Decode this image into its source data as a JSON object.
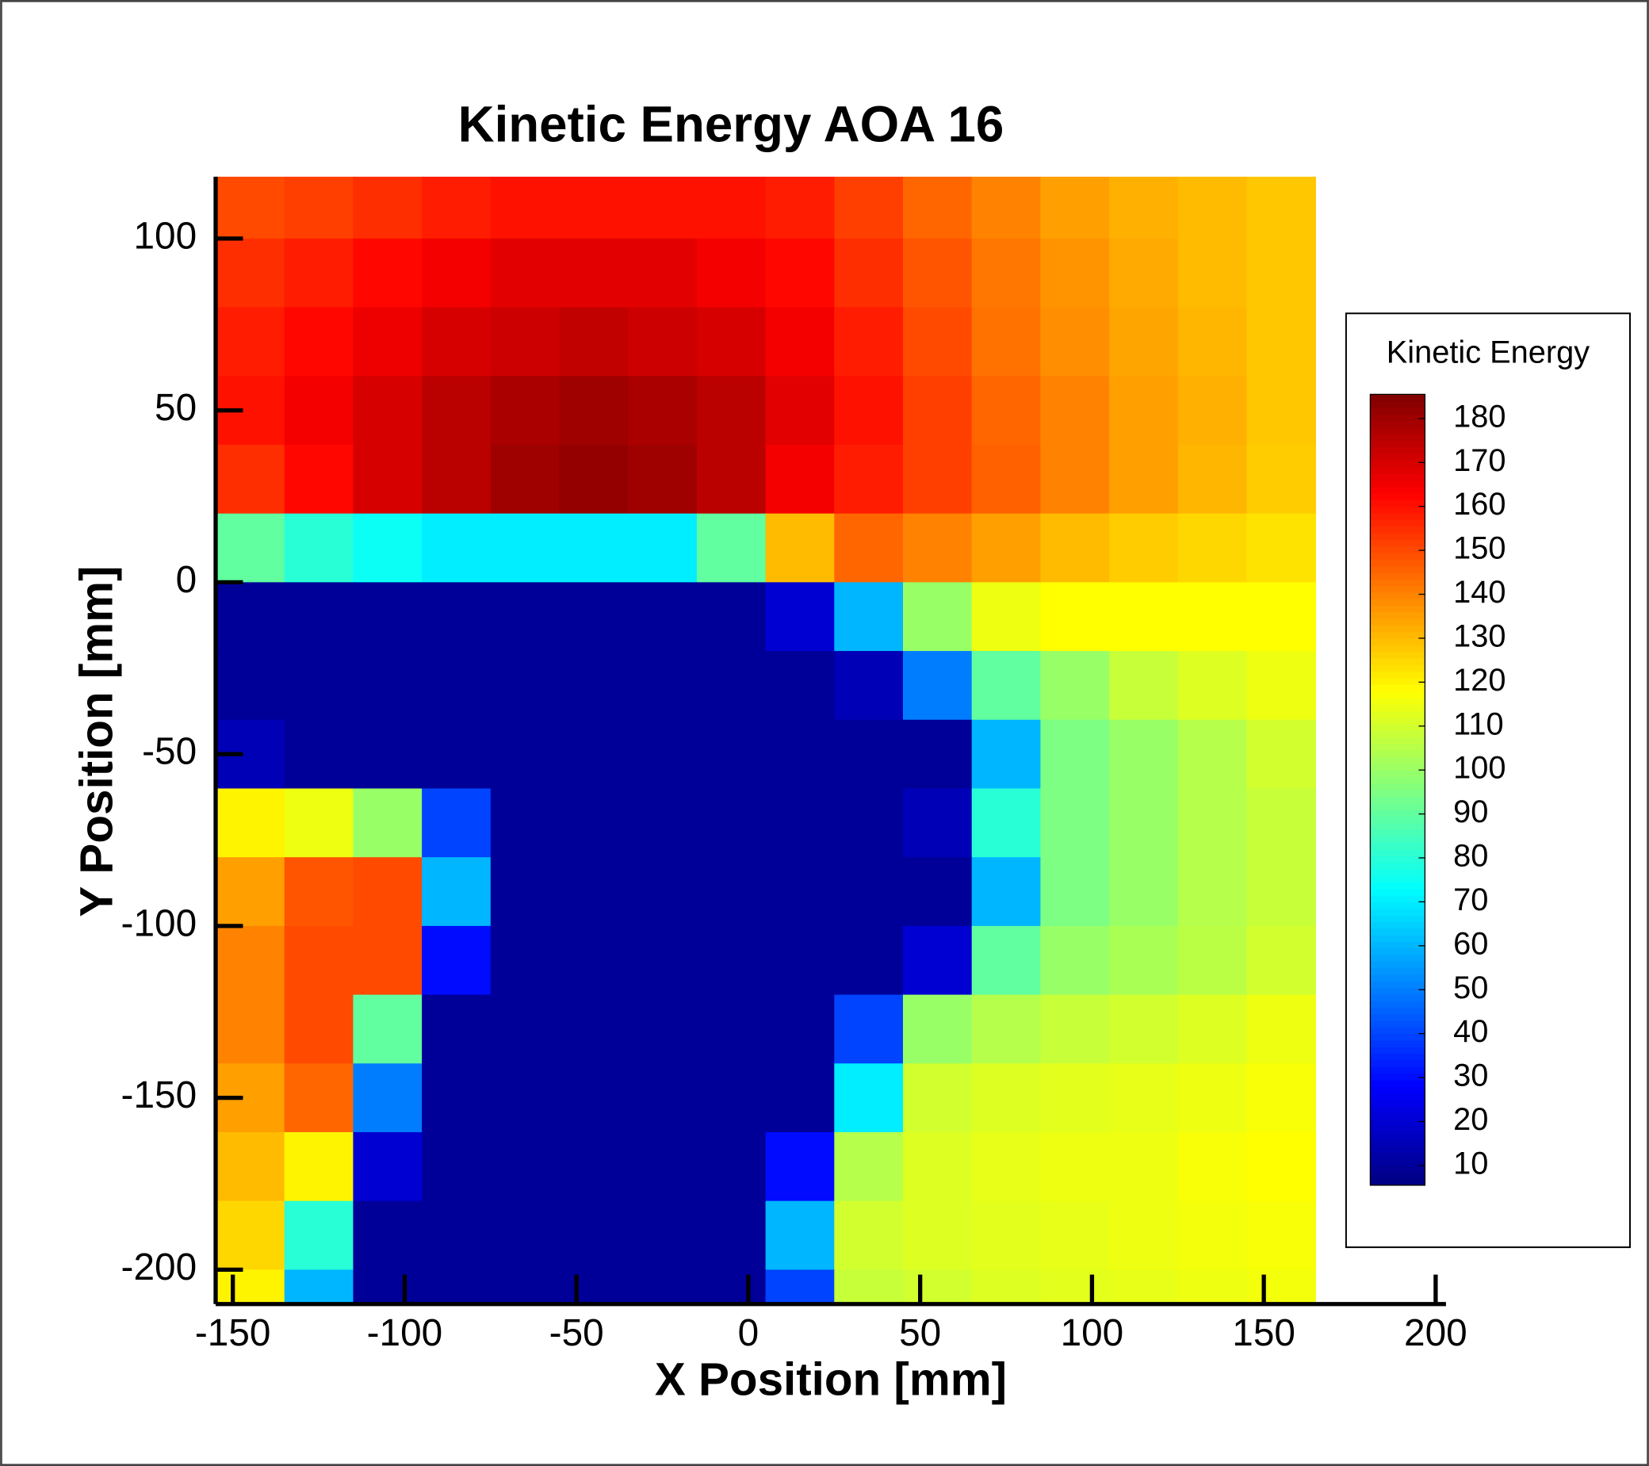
{
  "chart_data": {
    "type": "heatmap",
    "title": "Kinetic Energy AOA 16",
    "x_label": "X Position [mm]",
    "y_label": "Y Position [mm]",
    "xlim": [
      -155,
      203
    ],
    "ylim": [
      -210,
      118
    ],
    "xticks": [
      -150,
      -100,
      -50,
      0,
      50,
      100,
      150,
      200
    ],
    "yticks": [
      -200,
      -150,
      -100,
      -50,
      0,
      50,
      100
    ],
    "x": [
      -145,
      -125,
      -105,
      -85,
      -65,
      -45,
      -25,
      -5,
      15,
      35,
      55,
      75,
      95,
      115,
      135,
      155
    ],
    "y": [
      110,
      90,
      70,
      50,
      30,
      10,
      -10,
      -30,
      -50,
      -70,
      -90,
      -110,
      -130,
      -150,
      -170,
      -190,
      -210
    ],
    "z": [
      [
        150,
        152,
        155,
        158,
        160,
        160,
        160,
        160,
        158,
        152,
        145,
        140,
        135,
        132,
        130,
        128
      ],
      [
        155,
        158,
        162,
        165,
        168,
        168,
        168,
        165,
        162,
        155,
        148,
        142,
        137,
        133,
        130,
        128
      ],
      [
        158,
        162,
        166,
        170,
        172,
        174,
        172,
        170,
        165,
        158,
        150,
        143,
        138,
        134,
        131,
        128
      ],
      [
        160,
        165,
        170,
        175,
        178,
        180,
        178,
        175,
        168,
        160,
        152,
        145,
        140,
        135,
        132,
        128
      ],
      [
        155,
        162,
        170,
        175,
        180,
        182,
        180,
        175,
        165,
        158,
        152,
        146,
        140,
        135,
        131,
        127
      ],
      [
        90,
        80,
        75,
        70,
        70,
        70,
        70,
        90,
        130,
        145,
        140,
        135,
        130,
        127,
        125,
        123
      ],
      [
        10,
        10,
        10,
        10,
        10,
        10,
        10,
        10,
        20,
        60,
        100,
        115,
        118,
        118,
        118,
        118
      ],
      [
        10,
        10,
        10,
        10,
        10,
        10,
        10,
        10,
        10,
        15,
        50,
        90,
        100,
        108,
        112,
        115
      ],
      [
        15,
        10,
        10,
        10,
        10,
        10,
        10,
        10,
        10,
        10,
        10,
        60,
        95,
        100,
        105,
        110
      ],
      [
        120,
        115,
        100,
        40,
        10,
        10,
        10,
        10,
        10,
        10,
        15,
        80,
        95,
        100,
        105,
        108
      ],
      [
        135,
        148,
        150,
        60,
        10,
        10,
        10,
        10,
        10,
        10,
        10,
        60,
        95,
        100,
        105,
        108
      ],
      [
        140,
        150,
        150,
        30,
        10,
        10,
        10,
        10,
        10,
        10,
        20,
        90,
        100,
        103,
        106,
        110
      ],
      [
        140,
        150,
        90,
        10,
        10,
        10,
        10,
        10,
        10,
        40,
        100,
        105,
        108,
        110,
        112,
        115
      ],
      [
        135,
        145,
        50,
        10,
        10,
        10,
        10,
        10,
        10,
        70,
        110,
        112,
        113,
        114,
        115,
        117
      ],
      [
        130,
        120,
        20,
        10,
        10,
        10,
        10,
        10,
        30,
        105,
        112,
        114,
        115,
        115,
        117,
        118
      ],
      [
        125,
        80,
        10,
        10,
        10,
        10,
        10,
        10,
        60,
        110,
        112,
        113,
        114,
        115,
        116,
        117
      ],
      [
        120,
        60,
        10,
        10,
        10,
        10,
        10,
        10,
        40,
        108,
        110,
        112,
        113,
        114,
        115,
        116
      ]
    ],
    "colormap": [
      "#000080",
      "#0000ff",
      "#0080ff",
      "#00ffff",
      "#80ff80",
      "#ffff00",
      "#ff8000",
      "#ff0000",
      "#800000"
    ],
    "colorbar": {
      "title": "Kinetic Energy",
      "lim": [
        5.5,
        185.5
      ],
      "ticks": [
        10,
        20,
        30,
        40,
        50,
        60,
        70,
        80,
        90,
        100,
        110,
        120,
        130,
        140,
        150,
        160,
        170,
        180
      ]
    }
  }
}
